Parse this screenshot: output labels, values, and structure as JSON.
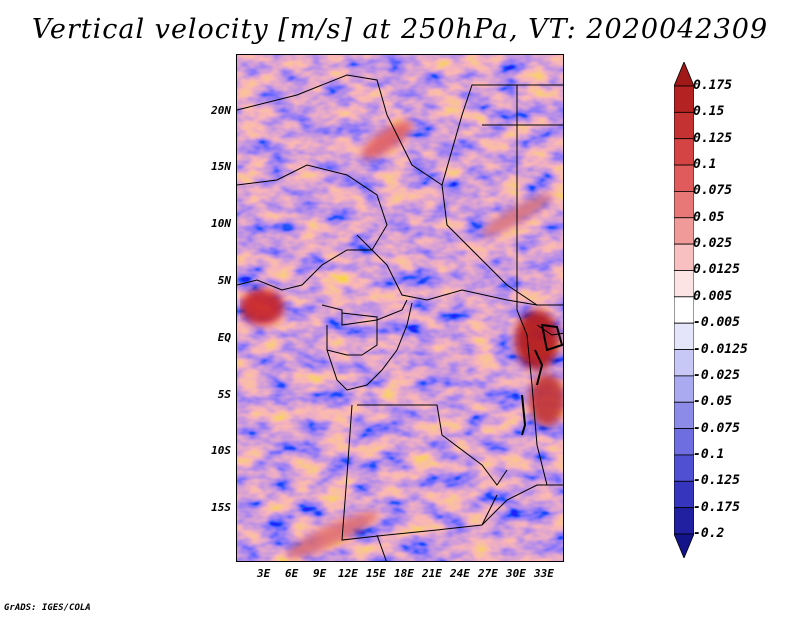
{
  "title": "Vertical velocity [m/s] at 250hPa, VT: 2020042309",
  "footer": "GrADS: IGES/COLA",
  "map": {
    "lat_labels": [
      "20N",
      "15N",
      "10N",
      "5N",
      "EQ",
      "5S",
      "10S",
      "15S"
    ],
    "lon_labels": [
      "3E",
      "6E",
      "9E",
      "12E",
      "15E",
      "18E",
      "21E",
      "24E",
      "27E",
      "30E",
      "33E"
    ],
    "field": "vertical velocity",
    "level": "250hPa",
    "valid_time": "2020042309"
  },
  "colorbar": {
    "labels": [
      "0.175",
      "0.15",
      "0.125",
      "0.1",
      "0.075",
      "0.05",
      "0.025",
      "0.0125",
      "0.005",
      "-0.005",
      "-0.0125",
      "-0.025",
      "-0.05",
      "-0.075",
      "-0.1",
      "-0.125",
      "-0.175",
      "-0.2"
    ],
    "colors": [
      "#a01818",
      "#b42222",
      "#c53232",
      "#d44444",
      "#e05c5c",
      "#e87878",
      "#f09a9a",
      "#f8c0c0",
      "#fde4e4",
      "#ffffff",
      "#e4e4fb",
      "#c8c8f6",
      "#aaaaf0",
      "#8c8ce8",
      "#6e6ee0",
      "#5050d2",
      "#3535bd",
      "#2020a0",
      "#14148a"
    ]
  }
}
